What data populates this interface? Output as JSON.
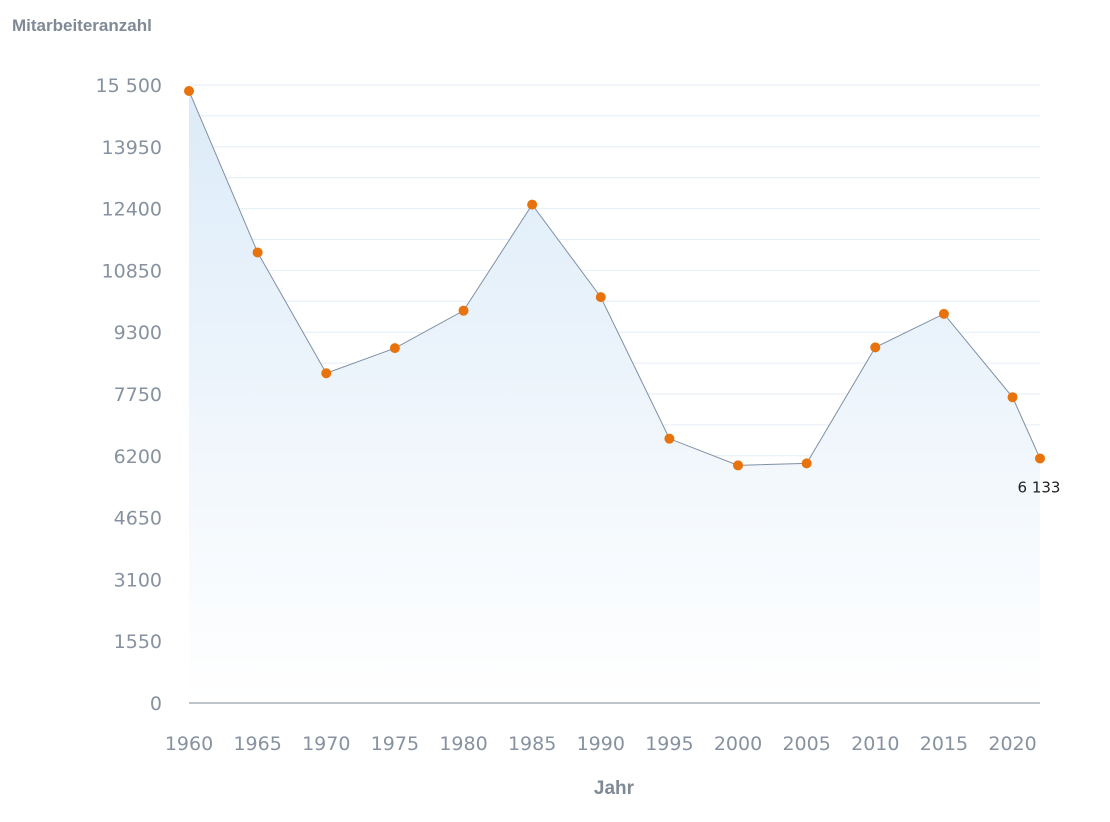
{
  "chart_data": {
    "type": "area",
    "ylabel": "Mitarbeiteranzahl",
    "xlabel": "Jahr",
    "x": [
      1960,
      1965,
      1970,
      1975,
      1980,
      1985,
      1990,
      1995,
      2000,
      2005,
      2010,
      2015,
      2020,
      2022
    ],
    "series": [
      {
        "values": [
          15350,
          11300,
          8270,
          8900,
          9840,
          12500,
          10180,
          6630,
          5960,
          6010,
          8920,
          9760,
          7670,
          6133
        ]
      }
    ],
    "ylim": [
      0,
      15500
    ],
    "yticks": [
      0,
      1550,
      3100,
      4650,
      6200,
      7750,
      9300,
      10850,
      12400,
      13950,
      15500
    ],
    "ytick_labels": [
      "0",
      "1550",
      "3100",
      "4650",
      "6200",
      "7750",
      "9300",
      "10850",
      "12400",
      "13950",
      "15 500"
    ],
    "xticks": [
      1960,
      1965,
      1970,
      1975,
      1980,
      1985,
      1990,
      1995,
      2000,
      2005,
      2010,
      2015,
      2020
    ],
    "xlim": [
      1960,
      2022
    ],
    "annotations": [
      {
        "x": 2022,
        "y": 6133,
        "text": "6 133"
      }
    ],
    "grid": true,
    "colors": {
      "line": "#7f8fa6",
      "marker": "#e8730c",
      "fill_top": "#dcebf8",
      "grid": "#e4eef7",
      "axis": "#7f8a96"
    }
  }
}
